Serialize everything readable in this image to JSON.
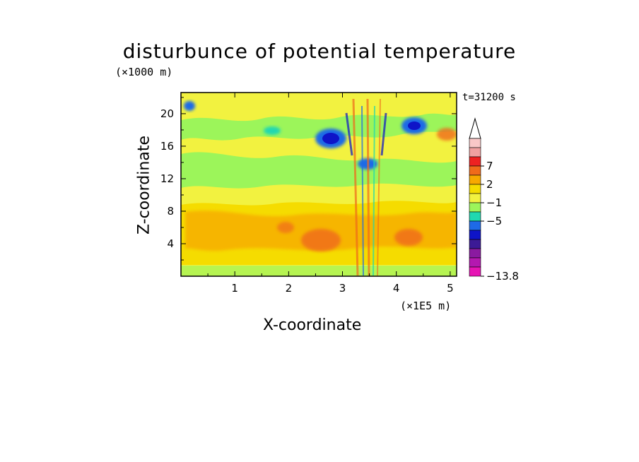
{
  "chart_data": {
    "type": "heatmap",
    "title": "disturbunce of potential temperature",
    "xlabel": "X-coordinate",
    "ylabel": "Z-coordinate",
    "x_multiplier": "(×1E5 m)",
    "y_multiplier": "(×1000 m)",
    "time_label": "t=31200 s",
    "xlim": [
      0,
      5.12
    ],
    "ylim": [
      0,
      22.6
    ],
    "x_ticks": [
      "1",
      "2",
      "3",
      "4",
      "5"
    ],
    "y_ticks": [
      "4",
      "8",
      "12",
      "16",
      "20"
    ],
    "colorbar": {
      "labels": [
        "7",
        "2",
        "−1",
        "−5",
        "−13.8"
      ],
      "colors": [
        "#f9c8c8",
        "#f0a0a0",
        "#ee2222",
        "#f06a1a",
        "#f7a800",
        "#f5dc00",
        "#f2f240",
        "#9cf55a",
        "#20d8b0",
        "#1e6ae6",
        "#0e14c8",
        "#3c1a96",
        "#8a1aa0",
        "#b418b0",
        "#e614b4"
      ],
      "min": -13.8
    },
    "field_description": "Banded field: yellow/orange warm layer below 10 km with orange cores near x=2.7 and x=4.2; green bands near 12-14 km and 18-20 km; blue-purple negative cells near x=2.8-3.7 at 14-18 km; streaky vertical plume near x=3.3-3.6."
  }
}
